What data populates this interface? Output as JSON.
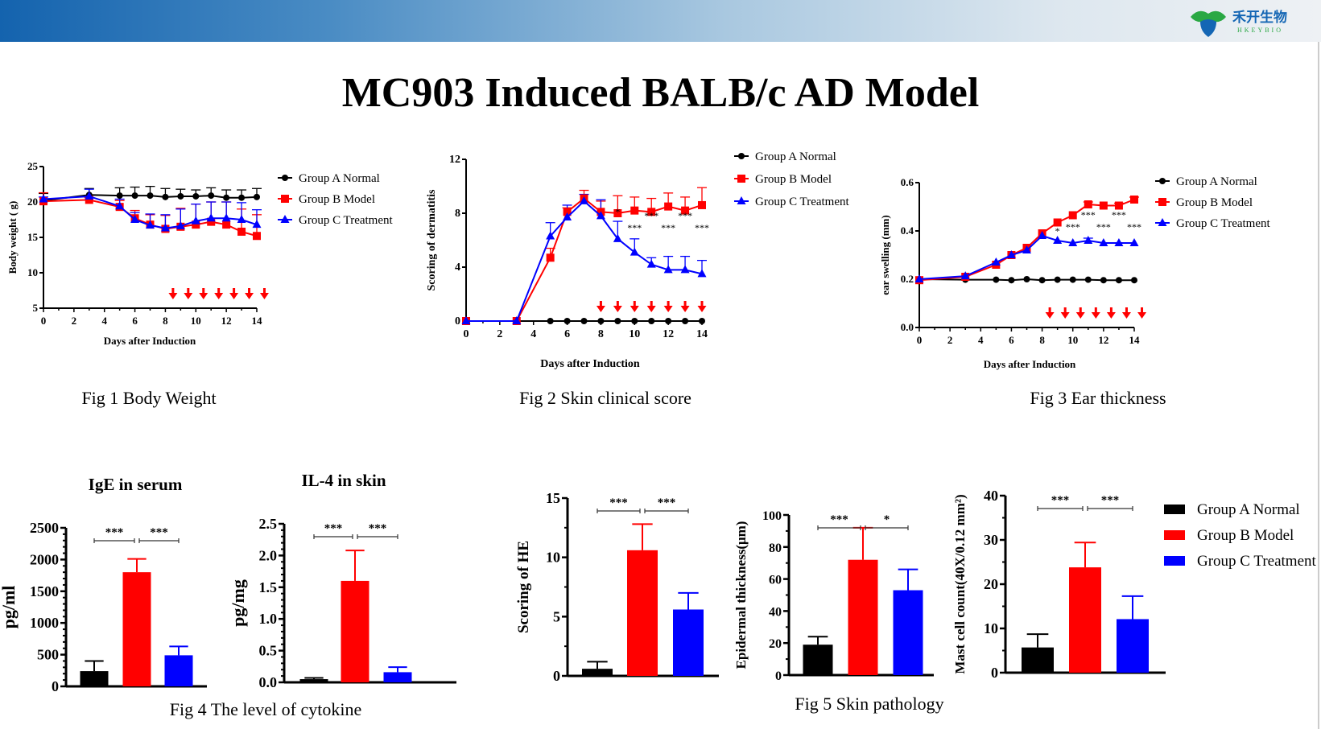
{
  "header": {
    "logo_text": "禾开生物",
    "logo_subtext": "HKEYBIO",
    "gradient_colors": [
      "#1463ae",
      "#eef1f4"
    ]
  },
  "title": "MC903 Induced BALB/c AD Model",
  "captions": {
    "fig1": "Fig 1 Body Weight",
    "fig2": "Fig 2 Skin clinical score",
    "fig3": "Fig 3 Ear thickness",
    "fig4": "Fig 4 The level of cytokine",
    "fig5": "Fig 5 Skin pathology"
  },
  "colors": {
    "group_a": "#000000",
    "group_b": "#ff0000",
    "group_c": "#0000ff",
    "arrow": "#ff0000"
  },
  "chart_data": [
    {
      "id": "fig1",
      "type": "line",
      "title": "",
      "xlabel": "Days after Induction",
      "ylabel": "Body weight ( g)",
      "xlim": [
        0,
        14
      ],
      "xticks": [
        0,
        2,
        4,
        6,
        8,
        10,
        12,
        14
      ],
      "ylim": [
        5,
        25
      ],
      "yticks": [
        5,
        10,
        15,
        20,
        25
      ],
      "x": [
        0,
        3,
        5,
        6,
        7,
        8,
        9,
        10,
        11,
        12,
        13,
        14
      ],
      "series": [
        {
          "name": "Group A Normal",
          "marker": "circle",
          "values": [
            20.2,
            21.0,
            20.9,
            20.9,
            20.9,
            20.7,
            20.8,
            20.8,
            20.9,
            20.6,
            20.6,
            20.7
          ],
          "error": [
            1.0,
            0.9,
            1.1,
            1.2,
            1.3,
            1.2,
            1.0,
            0.9,
            1.1,
            1.1,
            1.1,
            1.2
          ]
        },
        {
          "name": "Group B Model",
          "marker": "square",
          "values": [
            20.1,
            20.3,
            19.3,
            17.7,
            16.8,
            16.2,
            16.5,
            16.8,
            17.2,
            16.8,
            15.8,
            15.2
          ],
          "error": [
            1.2,
            0.3,
            0.9,
            1.1,
            1.4,
            1.9,
            2.6,
            2.9,
            2.8,
            3.2,
            3.2,
            3.0
          ]
        },
        {
          "name": "Group C Treatment",
          "marker": "triangle",
          "values": [
            20.4,
            20.8,
            19.4,
            17.5,
            16.7,
            16.3,
            16.6,
            17.3,
            17.7,
            17.7,
            17.5,
            16.8
          ],
          "error": [
            0.3,
            1.0,
            1.0,
            1.0,
            1.6,
            1.9,
            2.4,
            2.4,
            2.3,
            2.3,
            2.4,
            2.1
          ]
        }
      ],
      "treatment_arrows_days": [
        8.5,
        9.5,
        10.5,
        11.5,
        12.5,
        13.5,
        14.5
      ],
      "significance": [],
      "legend": "right"
    },
    {
      "id": "fig2",
      "type": "line",
      "title": "",
      "xlabel": "Days after Induction",
      "ylabel": "Scoring of dermatitis",
      "xlim": [
        0,
        14
      ],
      "xticks": [
        0,
        2,
        4,
        6,
        8,
        10,
        12,
        14
      ],
      "ylim": [
        0,
        12
      ],
      "yticks": [
        0,
        4,
        8,
        12
      ],
      "x": [
        0,
        3,
        5,
        6,
        7,
        8,
        9,
        10,
        11,
        12,
        13,
        14
      ],
      "series": [
        {
          "name": "Group A Normal",
          "marker": "circle",
          "values": [
            0,
            0,
            0,
            0,
            0,
            0,
            0,
            0,
            0,
            0,
            0,
            0
          ],
          "error": [
            0,
            0,
            0,
            0,
            0,
            0,
            0,
            0,
            0,
            0,
            0,
            0
          ]
        },
        {
          "name": "Group B Model",
          "marker": "square",
          "values": [
            0,
            0,
            4.7,
            8.1,
            9.1,
            8.1,
            8.0,
            8.2,
            8.1,
            8.5,
            8.2,
            8.6
          ],
          "error": [
            0,
            0,
            0.7,
            0.3,
            0.6,
            0.8,
            1.3,
            1.0,
            1.0,
            1.0,
            1.0,
            1.3
          ]
        },
        {
          "name": "Group C Treatment",
          "marker": "triangle",
          "values": [
            0,
            0,
            6.3,
            7.7,
            8.9,
            7.8,
            6.1,
            5.1,
            4.2,
            3.8,
            3.8,
            3.5
          ],
          "error": [
            0,
            0,
            1.0,
            0.9,
            0.5,
            1.2,
            1.3,
            1.0,
            0.5,
            1.0,
            1.0,
            1.0
          ]
        }
      ],
      "treatment_arrows_days": [
        8,
        9,
        10,
        11,
        12,
        13,
        14
      ],
      "significance": [
        {
          "day": 9,
          "label": "*"
        },
        {
          "day": 10,
          "label": "***"
        },
        {
          "day": 11,
          "label": "***"
        },
        {
          "day": 12,
          "label": "***"
        },
        {
          "day": 13,
          "label": "***"
        },
        {
          "day": 14,
          "label": "***"
        }
      ],
      "legend": "right"
    },
    {
      "id": "fig3",
      "type": "line",
      "title": "",
      "xlabel": "Days after Induction",
      "ylabel": "ear swelling (mm)",
      "xlim": [
        0,
        14
      ],
      "xticks": [
        0,
        2,
        4,
        6,
        8,
        10,
        12,
        14
      ],
      "ylim": [
        0,
        0.6
      ],
      "yticks": [
        0.0,
        0.2,
        0.4,
        0.6
      ],
      "ytick_labels": [
        "0.0",
        "0.2",
        "0.4",
        "0.6"
      ],
      "x": [
        0,
        3,
        5,
        6,
        7,
        8,
        9,
        10,
        11,
        12,
        13,
        14
      ],
      "series": [
        {
          "name": "Group A Normal",
          "marker": "circle",
          "values": [
            0.2,
            0.198,
            0.198,
            0.196,
            0.2,
            0.196,
            0.198,
            0.198,
            0.198,
            0.196,
            0.196,
            0.196
          ],
          "error": [
            0,
            0,
            0,
            0,
            0,
            0,
            0,
            0,
            0,
            0,
            0,
            0
          ]
        },
        {
          "name": "Group B Model",
          "marker": "square",
          "values": [
            0.196,
            0.21,
            0.26,
            0.3,
            0.33,
            0.39,
            0.435,
            0.465,
            0.51,
            0.505,
            0.505,
            0.53
          ],
          "error": [
            0,
            0,
            0,
            0,
            0,
            0,
            0,
            0,
            0.01,
            0,
            0.01,
            0.01
          ]
        },
        {
          "name": "Group C Treatment",
          "marker": "triangle",
          "values": [
            0.2,
            0.213,
            0.27,
            0.3,
            0.32,
            0.38,
            0.36,
            0.35,
            0.36,
            0.35,
            0.35,
            0.35
          ],
          "error": [
            0,
            0,
            0,
            0,
            0,
            0,
            0,
            0,
            0.01,
            0,
            0,
            0
          ]
        }
      ],
      "treatment_arrows_days": [
        8.5,
        9.5,
        10.5,
        11.5,
        12.5,
        13.5,
        14.5
      ],
      "significance": [
        {
          "day": 9,
          "label": "*"
        },
        {
          "day": 10,
          "label": "***"
        },
        {
          "day": 11,
          "label": "***"
        },
        {
          "day": 12,
          "label": "***"
        },
        {
          "day": 13,
          "label": "***"
        },
        {
          "day": 14,
          "label": "***"
        }
      ],
      "legend": "right"
    },
    {
      "id": "ige",
      "type": "bar",
      "title": "IgE in serum",
      "ylabel": "pg/ml",
      "ylim": [
        0,
        2500
      ],
      "yticks": [
        0,
        500,
        1000,
        1500,
        2000,
        2500
      ],
      "categories": [
        "Group A Normal",
        "Group B Model",
        "Group C Treatment"
      ],
      "values": [
        240,
        1800,
        490
      ],
      "error": [
        160,
        210,
        140
      ],
      "significance": [
        {
          "from": 0,
          "to": 1,
          "label": "***"
        },
        {
          "from": 1,
          "to": 2,
          "label": "***"
        }
      ]
    },
    {
      "id": "il4",
      "type": "bar",
      "title": "IL-4 in skin",
      "ylabel": "pg/mg",
      "ylim": [
        0,
        2.5
      ],
      "yticks": [
        0,
        0.5,
        1.0,
        1.5,
        2.0,
        2.5
      ],
      "ytick_labels": [
        "0.0",
        "0.5",
        "1.0",
        "1.5",
        "2.0",
        "2.5"
      ],
      "categories": [
        "Group A Normal",
        "Group B Model",
        "Group C Treatment"
      ],
      "values": [
        0.05,
        1.6,
        0.16
      ],
      "error": [
        0.02,
        0.48,
        0.08
      ],
      "significance": [
        {
          "from": 0,
          "to": 1,
          "label": "***"
        },
        {
          "from": 1,
          "to": 2,
          "label": "***"
        }
      ]
    },
    {
      "id": "he",
      "type": "bar",
      "title": "",
      "ylabel": "Scoring of HE",
      "ylim": [
        0,
        15
      ],
      "yticks": [
        0,
        5,
        10,
        15
      ],
      "categories": [
        "Group A Normal",
        "Group B Model",
        "Group C Treatment"
      ],
      "values": [
        0.6,
        10.6,
        5.6
      ],
      "error": [
        0.6,
        2.2,
        1.4
      ],
      "significance": [
        {
          "from": 0,
          "to": 1,
          "label": "***"
        },
        {
          "from": 1,
          "to": 2,
          "label": "***"
        }
      ]
    },
    {
      "id": "epi",
      "type": "bar",
      "title": "",
      "ylabel": "Epidermal thickness(μm)",
      "ylim": [
        0,
        100
      ],
      "yticks": [
        0,
        20,
        40,
        60,
        80,
        100
      ],
      "categories": [
        "Group A Normal",
        "Group B Model",
        "Group C Treatment"
      ],
      "values": [
        19,
        72,
        53
      ],
      "error": [
        5,
        20,
        13
      ],
      "significance": [
        {
          "from": 0,
          "to": 1,
          "label": "***"
        },
        {
          "from": 1,
          "to": 2,
          "label": "*"
        }
      ]
    },
    {
      "id": "mast",
      "type": "bar",
      "title": "",
      "ylabel": "Mast cell count(40X/0.12 mm²)",
      "ylim": [
        0,
        40
      ],
      "yticks": [
        0,
        10,
        20,
        30,
        40
      ],
      "categories": [
        "Group A Normal",
        "Group B Model",
        "Group C Treatment"
      ],
      "values": [
        5.7,
        23.8,
        12.1
      ],
      "error": [
        3.0,
        5.6,
        5.2
      ],
      "significance": [
        {
          "from": 0,
          "to": 1,
          "label": "***"
        },
        {
          "from": 1,
          "to": 2,
          "label": "***"
        }
      ],
      "legend": "right"
    }
  ]
}
